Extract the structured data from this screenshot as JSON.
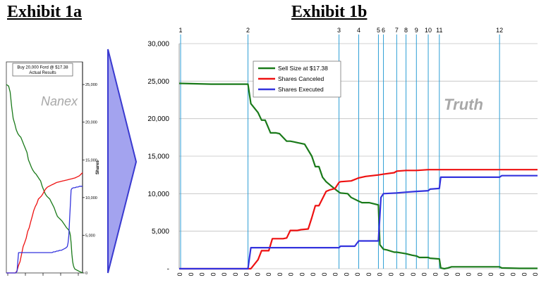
{
  "exhibits": {
    "a_title": "Exhibit 1a",
    "b_title": "Exhibit 1b"
  },
  "colors": {
    "sell": "#1a7a1a",
    "canceled": "#ee1111",
    "executed": "#3333dd",
    "event_line": "#2e9fd6",
    "arrow_fill": "#a3a3ef",
    "arrow_stroke": "#3a3ad0",
    "grid": "#c0c0c0",
    "watermark": "#a8a8a8"
  },
  "chart_data": [
    {
      "type": "line",
      "id": "nanex",
      "watermark": "Nanex",
      "box_title": "Buy 20,000 Ford @ $17.38",
      "box_subtitle": "Actual Results",
      "ylabel": "Shares",
      "ylim": [
        0,
        28000
      ],
      "yticks": [
        0,
        5000,
        10000,
        15000,
        20000,
        25000
      ],
      "ytick_labels": [
        "0",
        "5,000",
        "10,000",
        "15,000",
        "20,000",
        "25,000"
      ],
      "xlim": [
        0,
        100
      ],
      "series": [
        {
          "key": "sell",
          "x": [
            0,
            3,
            5,
            7,
            9,
            11,
            13,
            15,
            17,
            19,
            21,
            23,
            25,
            27,
            29,
            31,
            33,
            35,
            37,
            39,
            41,
            43,
            45,
            47,
            49,
            51,
            53,
            55,
            57,
            59,
            61,
            63,
            65,
            67,
            69,
            71,
            73,
            75,
            77,
            79,
            81,
            83,
            84,
            85,
            86,
            87,
            88,
            89,
            90,
            92,
            94,
            96,
            98,
            100
          ],
          "y": [
            25000,
            24800,
            24000,
            22000,
            20500,
            19800,
            19000,
            18500,
            18200,
            18000,
            17500,
            17000,
            16500,
            16000,
            15000,
            14500,
            14000,
            13600,
            13300,
            13100,
            12800,
            12500,
            12200,
            11500,
            11000,
            10500,
            10200,
            10000,
            9800,
            9400,
            9000,
            8600,
            8000,
            7500,
            7300,
            7100,
            6900,
            6600,
            6300,
            6000,
            5800,
            5500,
            5000,
            4000,
            2500,
            1500,
            1000,
            700,
            500,
            400,
            300,
            200,
            100,
            0
          ]
        },
        {
          "key": "canceled",
          "x": [
            0,
            8,
            12,
            14,
            16,
            18,
            20,
            22,
            24,
            26,
            28,
            30,
            32,
            34,
            36,
            38,
            40,
            42,
            44,
            46,
            48,
            50,
            52,
            54,
            56,
            58,
            60,
            62,
            64,
            66,
            68,
            70,
            72,
            74,
            76,
            78,
            80,
            82,
            84,
            86,
            88,
            90,
            92,
            94,
            96,
            98,
            100
          ],
          "y": [
            0,
            0,
            0,
            300,
            1000,
            1500,
            2500,
            3500,
            4000,
            4600,
            5500,
            6000,
            6800,
            7500,
            8300,
            8800,
            9200,
            9800,
            10000,
            10200,
            10500,
            10900,
            11200,
            11400,
            11500,
            11600,
            11700,
            11800,
            11900,
            12000,
            12050,
            12100,
            12150,
            12200,
            12250,
            12300,
            12350,
            12400,
            12450,
            12500,
            12550,
            12600,
            12700,
            12800,
            12900,
            13100,
            13300
          ]
        },
        {
          "key": "executed",
          "x": [
            0,
            8,
            12,
            14,
            16,
            20,
            25,
            30,
            35,
            40,
            45,
            50,
            55,
            60,
            62,
            64,
            66,
            68,
            70,
            72,
            74,
            76,
            78,
            80,
            81,
            82,
            83,
            84,
            85,
            86,
            88,
            90,
            92,
            94,
            96,
            98,
            100
          ],
          "y": [
            0,
            0,
            0,
            200,
            2700,
            2700,
            2700,
            2700,
            2700,
            2700,
            2700,
            2700,
            2700,
            2700,
            2800,
            2800,
            2900,
            2900,
            3000,
            3000,
            3100,
            3200,
            3300,
            3500,
            4000,
            5000,
            7000,
            9000,
            11000,
            11200,
            11300,
            11300,
            11400,
            11400,
            11500,
            11500,
            11500
          ]
        }
      ]
    },
    {
      "type": "line",
      "id": "truth",
      "watermark": "Truth",
      "ylim": [
        0,
        30000
      ],
      "yticks": [
        0,
        5000,
        10000,
        15000,
        20000,
        25000,
        30000
      ],
      "ytick_labels": [
        "-",
        "5,000",
        "10,000",
        "15,000",
        "20,000",
        "25,000",
        "30,000"
      ],
      "xlim": [
        0,
        100
      ],
      "x_tick_label": "0",
      "x_tick_count": 33,
      "events": [
        {
          "label": "1",
          "x": 0.4
        },
        {
          "label": "2",
          "x": 19.2
        },
        {
          "label": "3",
          "x": 44.6
        },
        {
          "label": "4",
          "x": 50.1
        },
        {
          "label": "5",
          "x": 55.6
        },
        {
          "label": "6",
          "x": 57.0
        },
        {
          "label": "7",
          "x": 60.7
        },
        {
          "label": "8",
          "x": 63.3
        },
        {
          "label": "9",
          "x": 66.2
        },
        {
          "label": "10",
          "x": 69.5
        },
        {
          "label": "11",
          "x": 72.6
        },
        {
          "label": "12",
          "x": 89.4
        }
      ],
      "legend": [
        "Sell Size at $17.38",
        "Shares Canceled",
        "Shares Executed"
      ],
      "series": [
        {
          "name": "Sell Size at $17.38",
          "key": "sell",
          "x": [
            0,
            9,
            19.2,
            20,
            22,
            23,
            24,
            25.5,
            26,
            27,
            28,
            30,
            31,
            32,
            33,
            35,
            37,
            38,
            39,
            40,
            41,
            42.5,
            43.5,
            44.6,
            45,
            47,
            48,
            50.1,
            51,
            53,
            55.6,
            56,
            57,
            58,
            60,
            60.7,
            62,
            63.3,
            65,
            66.2,
            67,
            69.5,
            70,
            72.6,
            73,
            74,
            75,
            76,
            78,
            80,
            85,
            89.4,
            90,
            95,
            100
          ],
          "y": [
            24700,
            24600,
            24600,
            22000,
            20800,
            19800,
            19800,
            18100,
            18100,
            18100,
            18000,
            17000,
            17000,
            16900,
            16800,
            16600,
            15000,
            13600,
            13600,
            12200,
            11600,
            11000,
            10600,
            10200,
            10100,
            10000,
            9500,
            9000,
            8800,
            8800,
            8500,
            3200,
            2600,
            2500,
            2200,
            2200,
            2100,
            2000,
            1800,
            1700,
            1500,
            1500,
            1400,
            1300,
            100,
            0,
            100,
            250,
            250,
            250,
            250,
            250,
            100,
            50,
            50
          ]
        },
        {
          "name": "Shares Canceled",
          "key": "canceled",
          "x": [
            0,
            15,
            19.2,
            20,
            22,
            23,
            25,
            26,
            27,
            29,
            30,
            31,
            33,
            34,
            36,
            37,
            38,
            39,
            41,
            42,
            43.5,
            44.6,
            45,
            48,
            50.1,
            52,
            55.6,
            57,
            60,
            60.7,
            63.3,
            66.2,
            69.5,
            75,
            80,
            89.4,
            100
          ],
          "y": [
            0,
            0,
            0,
            0,
            1200,
            2400,
            2400,
            4000,
            4000,
            4000,
            4100,
            5100,
            5100,
            5200,
            5300,
            6800,
            8400,
            8400,
            10300,
            10500,
            10700,
            11500,
            11600,
            11700,
            12100,
            12300,
            12500,
            12600,
            12800,
            13000,
            13100,
            13100,
            13200,
            13200,
            13200,
            13200,
            13200
          ]
        },
        {
          "name": "Shares Executed",
          "key": "executed",
          "x": [
            0,
            19.2,
            20,
            30,
            44.6,
            45,
            49,
            50.1,
            54,
            55.6,
            56.3,
            57,
            60.7,
            63.3,
            66.2,
            69.5,
            70,
            72.6,
            73,
            89.4,
            90,
            100
          ],
          "y": [
            0,
            0,
            2800,
            2800,
            2800,
            3000,
            3000,
            3700,
            3700,
            3700,
            9500,
            10000,
            10100,
            10200,
            10300,
            10400,
            10600,
            10700,
            12200,
            12200,
            12400,
            12400
          ]
        }
      ]
    }
  ]
}
